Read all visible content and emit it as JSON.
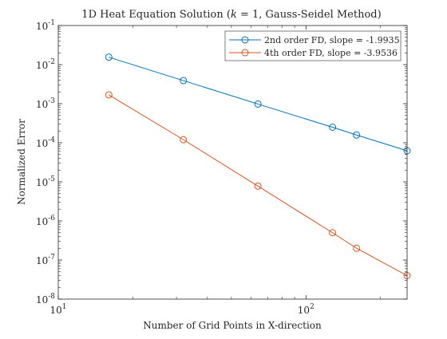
{
  "chart_data": {
    "type": "line",
    "title": "1D Heat Equation Solution (k = 1, Gauss-Seidel Method)",
    "title_parts": {
      "before": "1D Heat Equation Solution (",
      "var": "k",
      "after": " = 1, Gauss-Seidel Method)"
    },
    "xlabel": "Number of Grid Points in X-direction",
    "ylabel": "Normalized Error",
    "xscale": "log",
    "yscale": "log",
    "xlim": [
      10,
      256
    ],
    "ylim": [
      1e-08,
      0.1
    ],
    "x_ticks": [
      {
        "value": 10,
        "base": "10",
        "exp": "1"
      },
      {
        "value": 100,
        "base": "10",
        "exp": "2"
      }
    ],
    "y_ticks": [
      {
        "value": 1e-08,
        "base": "10",
        "exp": "-8"
      },
      {
        "value": 1e-07,
        "base": "10",
        "exp": "-7"
      },
      {
        "value": 1e-06,
        "base": "10",
        "exp": "-6"
      },
      {
        "value": 1e-05,
        "base": "10",
        "exp": "-5"
      },
      {
        "value": 0.0001,
        "base": "10",
        "exp": "-4"
      },
      {
        "value": 0.001,
        "base": "10",
        "exp": "-3"
      },
      {
        "value": 0.01,
        "base": "10",
        "exp": "-2"
      },
      {
        "value": 0.1,
        "base": "10",
        "exp": "-1"
      }
    ],
    "grid": false,
    "legend_position": "top-right",
    "series": [
      {
        "name": "2nd order FD, slope = -1.9935",
        "color": "#0072BD",
        "marker": "circle",
        "x": [
          16,
          32,
          64,
          128,
          160,
          256
        ],
        "y": [
          0.0155,
          0.0039,
          0.00098,
          0.00025,
          0.000158,
          6.25e-05
        ]
      },
      {
        "name": "4th order FD, slope = -3.9536",
        "color": "#D95319",
        "marker": "circle",
        "x": [
          16,
          32,
          64,
          128,
          160,
          256
        ],
        "y": [
          0.00168,
          0.00012,
          7.8e-06,
          5e-07,
          2e-07,
          4e-08
        ]
      }
    ]
  }
}
